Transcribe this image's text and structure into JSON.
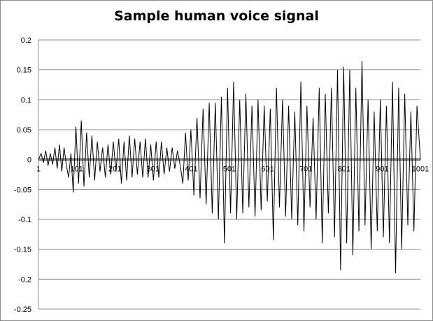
{
  "chart_data": {
    "type": "line",
    "title": "Sample human voice signal",
    "xlabel": "",
    "ylabel": "",
    "xlim": [
      1,
      1001
    ],
    "ylim": [
      -0.25,
      0.2
    ],
    "yticks": [
      0.2,
      0.15,
      0.1,
      0.05,
      0,
      -0.05,
      -0.1,
      -0.15,
      -0.2,
      -0.25
    ],
    "ytick_labels": [
      "0.2",
      "0.15",
      "0.1",
      "0.05",
      "0",
      "-0.05",
      "-0.1",
      "-0.15",
      "-0.2",
      "-0.25"
    ],
    "xticks": [
      1,
      101,
      201,
      301,
      401,
      501,
      601,
      701,
      801,
      901,
      1001
    ],
    "xtick_labels": [
      "1",
      "101",
      "201",
      "301",
      "401",
      "501",
      "601",
      "701",
      "801",
      "901",
      "1001"
    ],
    "grid": true,
    "legend": "none",
    "colors": {
      "line": "#000000",
      "zero_axis": "#808080",
      "grid": "#8c8c8c"
    },
    "series": [
      {
        "x": [
          1,
          8,
          14,
          20,
          26,
          32,
          38,
          44,
          50,
          56,
          62,
          68,
          74,
          80,
          86,
          92,
          99,
          106,
          113,
          120,
          127,
          134,
          141,
          148,
          155,
          162,
          169,
          176,
          183,
          190,
          197,
          204,
          211,
          218,
          225,
          232,
          239,
          246,
          253,
          260,
          267,
          274,
          281,
          288,
          295,
          302,
          309,
          316,
          323,
          330,
          337,
          344,
          351,
          358,
          365,
          372,
          379,
          386,
          393,
          400,
          408,
          416,
          424,
          432,
          440,
          448,
          456,
          464,
          472,
          480,
          488,
          496,
          504,
          512,
          520,
          528,
          536,
          544,
          552,
          560,
          568,
          576,
          584,
          592,
          600,
          608,
          616,
          624,
          632,
          640,
          648,
          656,
          664,
          672,
          680,
          688,
          696,
          704,
          712,
          720,
          728,
          736,
          744,
          752,
          760,
          768,
          776,
          784,
          792,
          800,
          808,
          816,
          824,
          832,
          840,
          848,
          856,
          864,
          872,
          880,
          888,
          896,
          904,
          912,
          920,
          928,
          936,
          944,
          952,
          960,
          968,
          976,
          984,
          992,
          1001
        ],
        "y": [
          0,
          0.01,
          -0.005,
          0.015,
          -0.01,
          0.01,
          -0.008,
          0.02,
          -0.015,
          0.025,
          -0.02,
          0.02,
          -0.01,
          -0.03,
          0.01,
          -0.055,
          0.055,
          -0.04,
          0.065,
          -0.045,
          0.045,
          -0.03,
          0.04,
          -0.035,
          0.03,
          -0.02,
          0.02,
          -0.03,
          0.025,
          -0.025,
          0.03,
          -0.02,
          0.035,
          -0.04,
          0.03,
          -0.035,
          0.04,
          -0.03,
          0.035,
          -0.025,
          0.03,
          -0.03,
          0.035,
          -0.03,
          0.025,
          -0.035,
          0.03,
          -0.03,
          0.03,
          -0.025,
          0.02,
          -0.02,
          0.02,
          -0.015,
          0.015,
          -0.01,
          -0.04,
          0.045,
          -0.035,
          0.05,
          -0.06,
          0.07,
          -0.065,
          0.085,
          -0.075,
          0.095,
          -0.09,
          0.095,
          -0.1,
          0.105,
          -0.14,
          0.12,
          -0.09,
          0.13,
          -0.1,
          0.1,
          -0.09,
          0.11,
          -0.08,
          0.09,
          -0.095,
          0.1,
          -0.085,
          0.09,
          -0.07,
          0.085,
          -0.135,
          0.12,
          -0.08,
          0.1,
          -0.095,
          0.09,
          -0.1,
          0.08,
          -0.11,
          0.13,
          -0.12,
          0.09,
          -0.08,
          0.07,
          -0.1,
          0.12,
          -0.14,
          0.11,
          -0.09,
          0.12,
          -0.13,
          0.15,
          -0.185,
          0.155,
          -0.14,
          0.15,
          -0.16,
          0.12,
          -0.12,
          0.165,
          -0.11,
          0.1,
          -0.15,
          0.08,
          -0.12,
          0.1,
          -0.13,
          0.09,
          -0.14,
          0.13,
          -0.19,
          0.12,
          -0.15,
          0.11,
          -0.11,
          0.08,
          -0.12,
          0.09,
          0
        ]
      }
    ]
  }
}
